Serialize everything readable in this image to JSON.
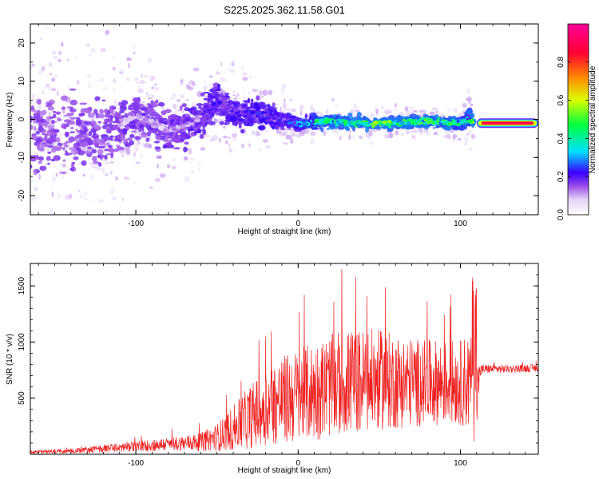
{
  "title": "S225.2025.362.11.58.G01",
  "chart_data": [
    {
      "type": "heatmap",
      "xlabel": "Height of straight line (km)",
      "ylabel": "Frequency (Hz)",
      "xlim": [
        -165,
        148
      ],
      "ylim": [
        -25,
        25
      ],
      "xticks": [
        -100,
        0,
        100
      ],
      "xtick_labels": [
        "-100",
        "0",
        "100"
      ],
      "yticks": [
        -20,
        -10,
        0,
        10,
        20
      ],
      "ytick_labels": [
        "-20",
        "-10",
        "0",
        "10",
        "20"
      ],
      "ridge": {
        "x": [
          -165,
          -140,
          -120,
          -100,
          -80,
          -70,
          -60,
          -50,
          -40,
          -30,
          -20,
          -10,
          0,
          10,
          20,
          40,
          60,
          80,
          100,
          105,
          110,
          130,
          148
        ],
        "freq": [
          -3,
          -4,
          -4,
          1,
          -3,
          -2,
          1,
          5,
          2,
          2,
          1,
          0,
          -1.5,
          -0.5,
          -0.5,
          -1,
          -1,
          -0.5,
          -1,
          0,
          -1,
          -1,
          -1
        ],
        "spread": [
          16,
          15,
          14,
          10,
          10,
          8,
          8,
          8,
          7,
          6,
          5,
          4,
          3,
          3,
          2.5,
          2.5,
          2.5,
          2.5,
          3,
          4,
          1.5,
          1,
          1
        ],
        "amplitude": [
          0.05,
          0.06,
          0.07,
          0.1,
          0.1,
          0.12,
          0.15,
          0.18,
          0.18,
          0.2,
          0.2,
          0.22,
          0.25,
          0.35,
          0.4,
          0.45,
          0.45,
          0.45,
          0.4,
          0.3,
          0.9,
          0.95,
          0.95
        ]
      },
      "colorbar": {
        "label": "Normalized spectral amplitude",
        "range": [
          0,
          1
        ],
        "ticks": [
          0,
          0.2,
          0.4,
          0.6,
          0.8
        ],
        "tick_labels": [
          "0.0",
          "0.2",
          "0.4",
          "0.6",
          "0.8"
        ],
        "colors": [
          "#ffffff",
          "#d9c2f5",
          "#8a2be2",
          "#3300ff",
          "#00e5ff",
          "#00ff33",
          "#e6ff00",
          "#ff6600",
          "#ff0033",
          "#ff0099"
        ]
      }
    },
    {
      "type": "line",
      "xlabel": "Height of straight line (km)",
      "ylabel": "SNR (10 * v/v)",
      "xlim": [
        -165,
        148
      ],
      "ylim": [
        0,
        1700
      ],
      "xticks": [
        -100,
        0,
        100
      ],
      "xtick_labels": [
        "-100",
        "0",
        "100"
      ],
      "yticks": [
        500,
        1000,
        1500
      ],
      "ytick_labels": [
        "500",
        "1000",
        "1500"
      ],
      "series": [
        {
          "name": "SNR",
          "color": "#ee2222",
          "envelope_x": [
            -165,
            -140,
            -110,
            -80,
            -60,
            -50,
            -40,
            -30,
            -20,
            -10,
            0,
            10,
            20,
            30,
            40,
            50,
            60,
            70,
            80,
            90,
            100,
            105,
            108,
            110,
            112,
            115,
            130,
            148
          ],
          "envelope_mean": [
            20,
            30,
            60,
            90,
            110,
            150,
            230,
            330,
            420,
            480,
            520,
            560,
            610,
            640,
            650,
            660,
            650,
            640,
            640,
            640,
            640,
            650,
            600,
            500,
            740,
            760,
            760,
            770
          ],
          "envelope_noise": [
            15,
            20,
            40,
            60,
            80,
            120,
            200,
            280,
            350,
            400,
            420,
            440,
            460,
            470,
            470,
            450,
            430,
            400,
            380,
            380,
            380,
            450,
            500,
            400,
            60,
            40,
            35,
            35
          ]
        }
      ]
    }
  ]
}
